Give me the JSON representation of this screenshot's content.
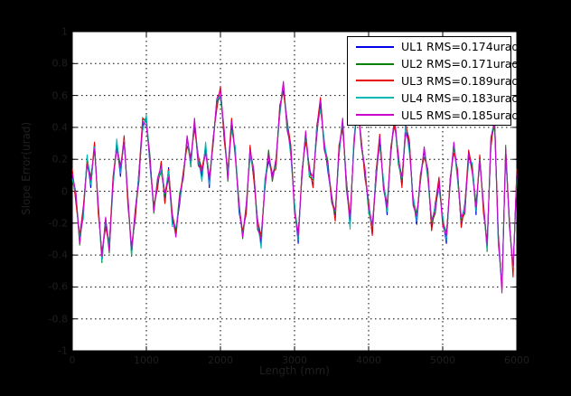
{
  "figure": {
    "background_color": "#000000",
    "plot_background_color": "#ffffff",
    "axis_text_color": "#1f1f1f",
    "grid_color": "#000000",
    "legend_background": "#ffffff",
    "legend_border": "#000000"
  },
  "chart_data": {
    "type": "line",
    "title": "",
    "xlabel": "Length (mm)",
    "ylabel": "Slope Error(urad)",
    "xlim": [
      0,
      6000
    ],
    "ylim": [
      -1,
      1
    ],
    "xticks": [
      0,
      1000,
      2000,
      3000,
      4000,
      5000,
      6000
    ],
    "xtick_labels": [
      "0",
      "1000",
      "2000",
      "3000",
      "4000",
      "5000",
      "6000"
    ],
    "yticks": [
      1,
      0.8,
      0.6,
      0.4,
      0.2,
      0,
      -0.2,
      -0.4,
      -0.6,
      -0.8,
      -1
    ],
    "ytick_labels": [
      "1",
      "0.8",
      "0.6",
      "0.4",
      "0.2",
      "0",
      "-0.2",
      "-0.4",
      "-0.6",
      "-0.8",
      "-1"
    ],
    "grid": true,
    "legend_position": "top-right",
    "x_start": 0,
    "x_step": 50,
    "base": [
      0.1,
      -0.05,
      -0.3,
      -0.13,
      0.2,
      0.05,
      0.28,
      -0.1,
      -0.42,
      -0.2,
      -0.35,
      0.05,
      0.3,
      0.12,
      0.32,
      -0.05,
      -0.38,
      -0.15,
      0.1,
      0.42,
      0.45,
      0.18,
      -0.12,
      0.05,
      0.15,
      -0.05,
      0.12,
      -0.18,
      -0.25,
      -0.05,
      0.1,
      0.32,
      0.18,
      0.42,
      0.2,
      0.1,
      0.28,
      0.05,
      0.3,
      0.55,
      0.62,
      0.35,
      0.1,
      0.42,
      0.25,
      -0.1,
      -0.28,
      -0.1,
      0.25,
      0.1,
      -0.2,
      -0.32,
      0.05,
      0.22,
      0.08,
      0.18,
      0.5,
      0.65,
      0.42,
      0.25,
      -0.1,
      -0.3,
      0.1,
      0.35,
      0.12,
      0.05,
      0.38,
      0.55,
      0.3,
      0.15,
      -0.05,
      -0.15,
      0.25,
      0.42,
      0.05,
      -0.2,
      0.3,
      0.55,
      0.3,
      0.12,
      -0.1,
      -0.25,
      0.1,
      0.32,
      0.05,
      -0.12,
      0.25,
      0.45,
      0.2,
      0.05,
      0.4,
      0.28,
      -0.05,
      -0.18,
      0.08,
      0.25,
      0.1,
      -0.22,
      -0.1,
      0.05,
      -0.18,
      -0.3,
      0.05,
      0.28,
      0.1,
      -0.2,
      -0.1,
      0.22,
      0.15,
      -0.12,
      0.2,
      -0.1,
      -0.35,
      0.3,
      0.45,
      -0.3,
      -0.6,
      0.25,
      -0.2,
      -0.5,
      0.1
    ],
    "series": [
      {
        "name": "UL1 RMS=0.174urad",
        "rms_urad": 0.174,
        "color": "#0000E6",
        "dev_pattern": [
          0.02,
          -0.02,
          0.03,
          -0.01,
          0.01,
          -0.03,
          0.02,
          0.0
        ]
      },
      {
        "name": "UL2 RMS=0.171urad",
        "rms_urad": 0.171,
        "color": "#008000",
        "dev_pattern": [
          -0.03,
          0.02,
          -0.04,
          0.03,
          0.0,
          0.04,
          -0.02,
          0.01
        ]
      },
      {
        "name": "UL3 RMS=0.189urad",
        "rms_urad": 0.189,
        "color": "#E60000",
        "dev_pattern": [
          0.04,
          -0.03,
          0.02,
          0.04,
          -0.02,
          0.01,
          0.03,
          -0.04
        ]
      },
      {
        "name": "UL4 RMS=0.183urad",
        "rms_urad": 0.183,
        "color": "#00B8B8",
        "dev_pattern": [
          -0.02,
          0.03,
          0.01,
          -0.04,
          0.03,
          -0.01,
          0.0,
          0.02
        ]
      },
      {
        "name": "UL5 RMS=0.185urad",
        "rms_urad": 0.185,
        "color": "#CC00CC",
        "dev_pattern": [
          0.01,
          0.04,
          -0.03,
          0.02,
          -0.04,
          0.02,
          -0.01,
          0.03
        ]
      }
    ]
  }
}
